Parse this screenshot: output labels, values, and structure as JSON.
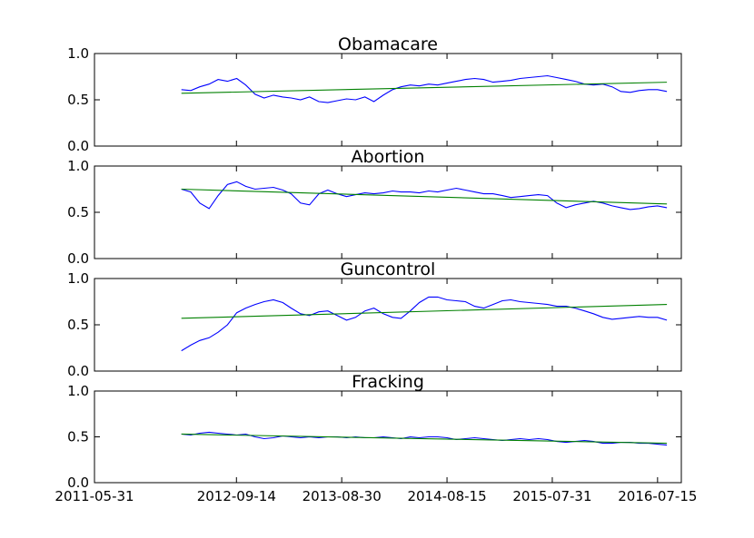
{
  "chart_data": {
    "type": "line",
    "shared_x_tick_labels": [
      "2011-05-31",
      "2012-09-14",
      "2013-08-30",
      "2014-08-15",
      "2015-07-31",
      "2016-07-15"
    ],
    "x_ticks": [
      "2011-05-31",
      "2012-09-14",
      "2013-08-30",
      "2014-08-15",
      "2015-07-31",
      "2016-07-15"
    ],
    "xlim": [
      "2011-05-31",
      "2016-10-02"
    ],
    "y_tick_labels": [
      "0.0",
      "0.5",
      "1.0"
    ],
    "y_ticks": [
      0.0,
      0.5,
      1.0
    ],
    "ylim": [
      0,
      1
    ],
    "grid": false,
    "series_colors": {
      "data": "#0000ff",
      "trend": "#008000"
    },
    "panels": [
      {
        "title": "Obamacare",
        "x": [
          "2012-03-15",
          "2012-04-15",
          "2012-05-15",
          "2012-06-15",
          "2012-07-15",
          "2012-08-15",
          "2012-09-15",
          "2012-10-15",
          "2012-11-15",
          "2012-12-15",
          "2013-01-15",
          "2013-02-15",
          "2013-03-15",
          "2013-04-15",
          "2013-05-15",
          "2013-06-15",
          "2013-07-15",
          "2013-08-15",
          "2013-09-15",
          "2013-10-15",
          "2013-11-15",
          "2013-12-15",
          "2014-01-15",
          "2014-02-15",
          "2014-03-15",
          "2014-04-15",
          "2014-05-15",
          "2014-06-15",
          "2014-07-15",
          "2014-08-15",
          "2014-09-15",
          "2014-10-15",
          "2014-11-15",
          "2014-12-15",
          "2015-01-15",
          "2015-02-15",
          "2015-03-15",
          "2015-04-15",
          "2015-05-15",
          "2015-06-15",
          "2015-07-15",
          "2015-08-15",
          "2015-09-15",
          "2015-10-15",
          "2015-11-15",
          "2015-12-15",
          "2016-01-15",
          "2016-02-15",
          "2016-03-15",
          "2016-04-15",
          "2016-05-15",
          "2016-06-15",
          "2016-07-15",
          "2016-08-15"
        ],
        "values": [
          0.61,
          0.6,
          0.64,
          0.67,
          0.72,
          0.7,
          0.73,
          0.66,
          0.56,
          0.52,
          0.55,
          0.53,
          0.52,
          0.5,
          0.53,
          0.48,
          0.47,
          0.49,
          0.51,
          0.5,
          0.53,
          0.48,
          0.55,
          0.61,
          0.64,
          0.66,
          0.65,
          0.67,
          0.66,
          0.68,
          0.7,
          0.72,
          0.73,
          0.72,
          0.69,
          0.7,
          0.71,
          0.73,
          0.74,
          0.75,
          0.76,
          0.74,
          0.72,
          0.7,
          0.67,
          0.66,
          0.67,
          0.64,
          0.59,
          0.58,
          0.6,
          0.61,
          0.61,
          0.59
        ],
        "trend": [
          0.57,
          0.69
        ]
      },
      {
        "title": "Abortion",
        "x": [
          "2012-03-15",
          "2012-04-15",
          "2012-05-15",
          "2012-06-15",
          "2012-07-15",
          "2012-08-15",
          "2012-09-15",
          "2012-10-15",
          "2012-11-15",
          "2012-12-15",
          "2013-01-15",
          "2013-02-15",
          "2013-03-15",
          "2013-04-15",
          "2013-05-15",
          "2013-06-15",
          "2013-07-15",
          "2013-08-15",
          "2013-09-15",
          "2013-10-15",
          "2013-11-15",
          "2013-12-15",
          "2014-01-15",
          "2014-02-15",
          "2014-03-15",
          "2014-04-15",
          "2014-05-15",
          "2014-06-15",
          "2014-07-15",
          "2014-08-15",
          "2014-09-15",
          "2014-10-15",
          "2014-11-15",
          "2014-12-15",
          "2015-01-15",
          "2015-02-15",
          "2015-03-15",
          "2015-04-15",
          "2015-05-15",
          "2015-06-15",
          "2015-07-15",
          "2015-08-15",
          "2015-09-15",
          "2015-10-15",
          "2015-11-15",
          "2015-12-15",
          "2016-01-15",
          "2016-02-15",
          "2016-03-15",
          "2016-04-15",
          "2016-05-15",
          "2016-06-15",
          "2016-07-15",
          "2016-08-15"
        ],
        "values": [
          0.75,
          0.72,
          0.6,
          0.54,
          0.68,
          0.8,
          0.83,
          0.78,
          0.75,
          0.76,
          0.77,
          0.74,
          0.7,
          0.6,
          0.58,
          0.7,
          0.74,
          0.7,
          0.67,
          0.69,
          0.71,
          0.7,
          0.71,
          0.73,
          0.72,
          0.72,
          0.71,
          0.73,
          0.72,
          0.74,
          0.76,
          0.74,
          0.72,
          0.7,
          0.7,
          0.68,
          0.66,
          0.67,
          0.68,
          0.69,
          0.68,
          0.6,
          0.55,
          0.58,
          0.6,
          0.62,
          0.6,
          0.57,
          0.55,
          0.53,
          0.54,
          0.56,
          0.57,
          0.55
        ],
        "trend": [
          0.75,
          0.59
        ]
      },
      {
        "title": "Guncontrol",
        "x": [
          "2012-03-15",
          "2012-04-15",
          "2012-05-15",
          "2012-06-15",
          "2012-07-15",
          "2012-08-15",
          "2012-09-15",
          "2012-10-15",
          "2012-11-15",
          "2012-12-15",
          "2013-01-15",
          "2013-02-15",
          "2013-03-15",
          "2013-04-15",
          "2013-05-15",
          "2013-06-15",
          "2013-07-15",
          "2013-08-15",
          "2013-09-15",
          "2013-10-15",
          "2013-11-15",
          "2013-12-15",
          "2014-01-15",
          "2014-02-15",
          "2014-03-15",
          "2014-04-15",
          "2014-05-15",
          "2014-06-15",
          "2014-07-15",
          "2014-08-15",
          "2014-09-15",
          "2014-10-15",
          "2014-11-15",
          "2014-12-15",
          "2015-01-15",
          "2015-02-15",
          "2015-03-15",
          "2015-04-15",
          "2015-05-15",
          "2015-06-15",
          "2015-07-15",
          "2015-08-15",
          "2015-09-15",
          "2015-10-15",
          "2015-11-15",
          "2015-12-15",
          "2016-01-15",
          "2016-02-15",
          "2016-03-15",
          "2016-04-15",
          "2016-05-15",
          "2016-06-15",
          "2016-07-15",
          "2016-08-15"
        ],
        "values": [
          0.22,
          0.28,
          0.33,
          0.36,
          0.42,
          0.5,
          0.63,
          0.68,
          0.72,
          0.75,
          0.77,
          0.74,
          0.68,
          0.62,
          0.6,
          0.64,
          0.65,
          0.6,
          0.55,
          0.58,
          0.65,
          0.68,
          0.62,
          0.58,
          0.57,
          0.65,
          0.74,
          0.8,
          0.8,
          0.77,
          0.76,
          0.75,
          0.7,
          0.68,
          0.72,
          0.76,
          0.77,
          0.75,
          0.74,
          0.73,
          0.72,
          0.7,
          0.7,
          0.68,
          0.65,
          0.62,
          0.58,
          0.56,
          0.57,
          0.58,
          0.59,
          0.58,
          0.58,
          0.55
        ],
        "trend": [
          0.57,
          0.72
        ]
      },
      {
        "title": "Fracking",
        "x": [
          "2012-03-15",
          "2012-04-15",
          "2012-05-15",
          "2012-06-15",
          "2012-07-15",
          "2012-08-15",
          "2012-09-15",
          "2012-10-15",
          "2012-11-15",
          "2012-12-15",
          "2013-01-15",
          "2013-02-15",
          "2013-03-15",
          "2013-04-15",
          "2013-05-15",
          "2013-06-15",
          "2013-07-15",
          "2013-08-15",
          "2013-09-15",
          "2013-10-15",
          "2013-11-15",
          "2013-12-15",
          "2014-01-15",
          "2014-02-15",
          "2014-03-15",
          "2014-04-15",
          "2014-05-15",
          "2014-06-15",
          "2014-07-15",
          "2014-08-15",
          "2014-09-15",
          "2014-10-15",
          "2014-11-15",
          "2014-12-15",
          "2015-01-15",
          "2015-02-15",
          "2015-03-15",
          "2015-04-15",
          "2015-05-15",
          "2015-06-15",
          "2015-07-15",
          "2015-08-15",
          "2015-09-15",
          "2015-10-15",
          "2015-11-15",
          "2015-12-15",
          "2016-01-15",
          "2016-02-15",
          "2016-03-15",
          "2016-04-15",
          "2016-05-15",
          "2016-06-15",
          "2016-07-15",
          "2016-08-15"
        ],
        "values": [
          0.53,
          0.52,
          0.54,
          0.55,
          0.54,
          0.53,
          0.52,
          0.53,
          0.5,
          0.48,
          0.49,
          0.51,
          0.5,
          0.49,
          0.5,
          0.49,
          0.5,
          0.5,
          0.49,
          0.5,
          0.49,
          0.49,
          0.5,
          0.49,
          0.48,
          0.5,
          0.49,
          0.5,
          0.5,
          0.49,
          0.47,
          0.48,
          0.49,
          0.48,
          0.47,
          0.46,
          0.47,
          0.48,
          0.47,
          0.48,
          0.47,
          0.45,
          0.44,
          0.45,
          0.46,
          0.45,
          0.43,
          0.43,
          0.44,
          0.44,
          0.43,
          0.43,
          0.42,
          0.41
        ],
        "trend": [
          0.53,
          0.43
        ]
      }
    ]
  }
}
